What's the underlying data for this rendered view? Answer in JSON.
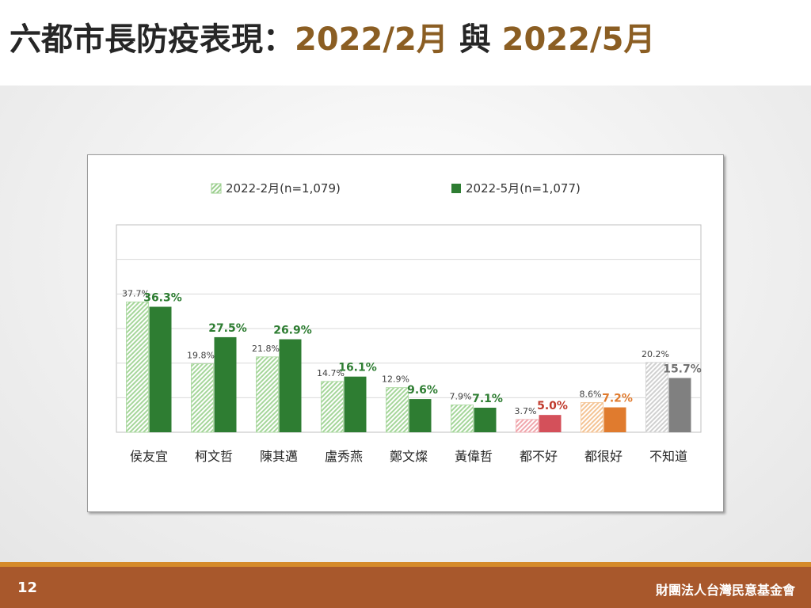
{
  "header": {
    "title_main": "六都市長防疫表現：",
    "title_date1": "2022/2月",
    "title_mid": " 與 ",
    "title_date2": "2022/5月"
  },
  "footer": {
    "page_number": "12",
    "organization": "財團法人台灣民意基金會"
  },
  "chart_data": {
    "type": "bar",
    "categories": [
      "侯友宜",
      "柯文哲",
      "陳其邁",
      "盧秀燕",
      "鄭文燦",
      "黃偉哲",
      "都不好",
      "都很好",
      "不知道"
    ],
    "series": [
      {
        "name": "2022-2月(n=1,079)",
        "values": [
          37.7,
          19.8,
          21.8,
          14.7,
          12.9,
          7.9,
          3.7,
          8.6,
          20.2
        ],
        "labels": [
          "37.7%",
          "19.8%",
          "21.8%",
          "14.7%",
          "12.9%",
          "7.9%",
          "3.7%",
          "8.6%",
          "20.2%"
        ],
        "pattern": "hatched"
      },
      {
        "name": "2022-5月(n=1,077)",
        "values": [
          36.3,
          27.5,
          26.9,
          16.1,
          9.6,
          7.1,
          5.0,
          7.2,
          15.7
        ],
        "labels": [
          "36.3%",
          "27.5%",
          "26.9%",
          "16.1%",
          "9.6%",
          "7.1%",
          "5.0%",
          "7.2%",
          "15.7%"
        ],
        "pattern": "solid"
      }
    ],
    "ylim": [
      0,
      60
    ],
    "grid": true,
    "legend_position": "top",
    "colors": {
      "group_colors": [
        "#2e7d32",
        "#2e7d32",
        "#2e7d32",
        "#2e7d32",
        "#2e7d32",
        "#2e7d32",
        "#d4505a",
        "#e07b2e",
        "#808080"
      ],
      "hatch_fill": [
        "#a5d69a",
        "#a5d69a",
        "#a5d69a",
        "#a5d69a",
        "#a5d69a",
        "#a5d69a",
        "#f0a7ad",
        "#f4c495",
        "#d0d0d0"
      ],
      "label_2_color": [
        "#2e7d32",
        "#2e7d32",
        "#2e7d32",
        "#2e7d32",
        "#2e7d32",
        "#2e7d32",
        "#c0392b",
        "#e07b2e",
        "#707070"
      ],
      "legend_hatch": "#9ccf8f",
      "legend_solid": "#2e7d32"
    }
  }
}
